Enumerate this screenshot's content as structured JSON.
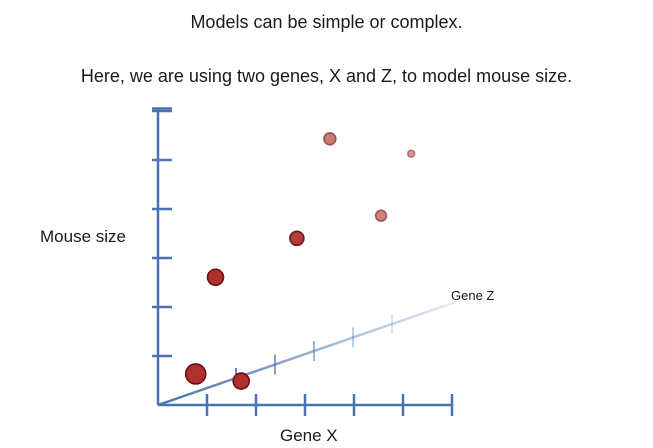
{
  "slide": {
    "title": "Models can be simple or complex.",
    "subtitle": "Here, we are using two genes, X and Z, to model mouse size."
  },
  "colors": {
    "axis": "#4a72b0",
    "point": "#b03030",
    "point_edge": "#6a0f0f"
  },
  "chart_data": {
    "type": "scatter",
    "title": "",
    "xlabel": "Gene X",
    "ylabel": "Mouse size",
    "zlabel": "Gene Z",
    "legend": "none",
    "grid": false,
    "x_ticks": 6,
    "y_ticks": 6,
    "z_ticks": 6,
    "points": [
      {
        "x": 0.9,
        "z": 0.7,
        "y": 0.4,
        "depth": 0.0,
        "size": 10
      },
      {
        "x": 1.6,
        "z": 0.6,
        "y": 2.4,
        "depth": 0.0,
        "size": 8
      },
      {
        "x": 2.3,
        "z": 0.9,
        "y": 0.2,
        "depth": 0.0,
        "size": 8
      },
      {
        "x": 3.4,
        "z": 2.4,
        "y": 2.7,
        "depth": 0.1,
        "size": 7
      },
      {
        "x": 3.9,
        "z": 3.6,
        "y": 4.4,
        "depth": 0.55,
        "size": 6
      },
      {
        "x": 5.0,
        "z": 4.8,
        "y": 2.5,
        "depth": 0.6,
        "size": 5.5
      },
      {
        "x": 5.7,
        "z": 5.4,
        "y": 3.6,
        "depth": 0.75,
        "size": 3.5
      }
    ]
  }
}
